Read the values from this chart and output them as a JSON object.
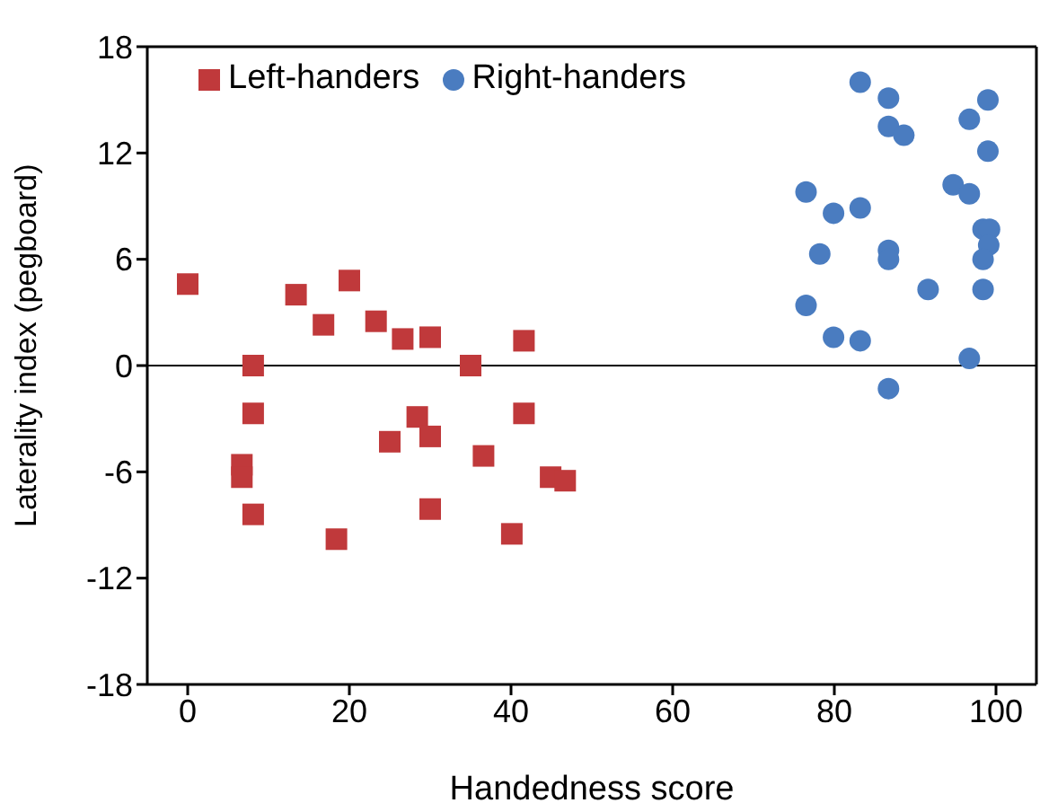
{
  "chart_data": {
    "type": "scatter",
    "xlabel": "Handedness score",
    "ylabel": "Laterality index (pegboard)",
    "xlim": [
      -5,
      105
    ],
    "xticks": [
      0,
      20,
      40,
      60,
      80,
      100
    ],
    "ylim": [
      -18,
      18
    ],
    "yticks": [
      -18,
      -12,
      -6,
      0,
      6,
      12,
      18
    ],
    "legend": "top left",
    "ref_lines": [
      {
        "axis": "y",
        "value": 0,
        "color": "#000000"
      }
    ],
    "series": [
      {
        "name": "Left-handers",
        "color": "#c0393b",
        "marker": "square",
        "x": [
          0,
          8.1,
          8.1,
          6.7,
          6.7,
          8.1,
          13.4,
          16.8,
          20,
          18.4,
          23.3,
          25,
          26.6,
          28.4,
          30,
          30,
          30,
          35,
          36.6,
          40.1,
          41.6,
          41.6,
          44.9,
          46.7
        ],
        "values": [
          4.6,
          0,
          -2.7,
          -5.6,
          -6.3,
          -8.4,
          4,
          2.3,
          4.8,
          -9.8,
          2.5,
          -4.3,
          1.5,
          -2.9,
          1.6,
          -4,
          -8.1,
          0,
          -5.1,
          -9.5,
          1.4,
          -2.7,
          -6.3,
          -6.5
        ]
      },
      {
        "name": "Right-handers",
        "color": "#4a7cc0",
        "marker": "circle",
        "x": [
          83.2,
          86.7,
          86.7,
          88.6,
          99,
          96.7,
          99,
          76.5,
          79.9,
          83.2,
          78.2,
          86.7,
          86.7,
          94.7,
          96.7,
          98.4,
          99.2,
          99.1,
          98.4,
          91.6,
          98.4,
          76.5,
          79.9,
          83.2,
          96.7,
          86.7
        ],
        "values": [
          16,
          15.1,
          13.5,
          13,
          15,
          13.9,
          12.1,
          9.8,
          8.6,
          8.9,
          6.3,
          6.5,
          6,
          10.2,
          9.7,
          7.7,
          7.7,
          6.8,
          6,
          4.3,
          4.3,
          3.4,
          1.6,
          1.4,
          0.4,
          -1.3
        ]
      }
    ]
  }
}
